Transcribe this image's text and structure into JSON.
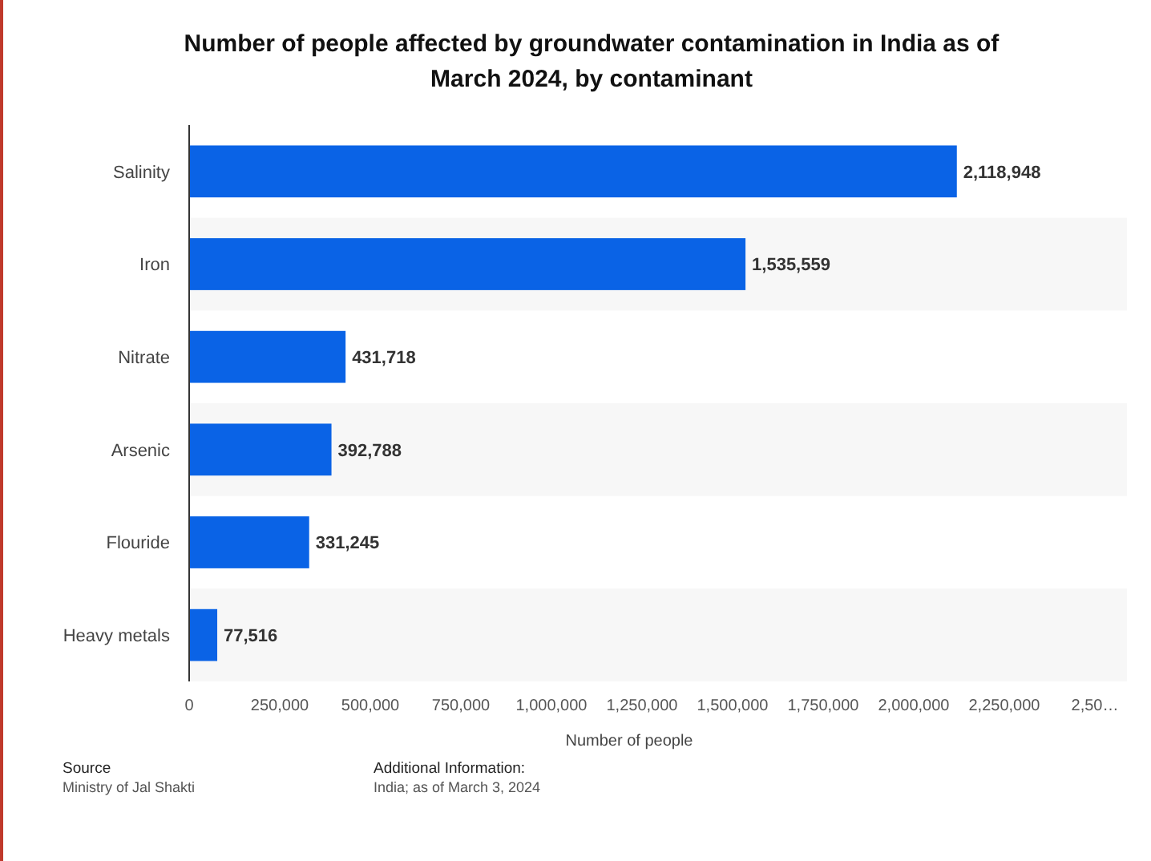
{
  "chart_data": {
    "type": "bar",
    "orientation": "horizontal",
    "title": "Number of people affected by groundwater contamination in India as of March 2024, by contaminant",
    "xlabel": "Number of people",
    "categories": [
      "Salinity",
      "Iron",
      "Nitrate",
      "Arsenic",
      "Flouride",
      "Heavy metals"
    ],
    "values": [
      2118948,
      1535559,
      431718,
      392788,
      331245,
      77516
    ],
    "value_labels": [
      "2,118,948",
      "1,535,559",
      "431,718",
      "392,788",
      "331,245",
      "77,516"
    ],
    "color": "#0a63e6",
    "grid": false,
    "xlim": [
      0,
      2500000
    ],
    "xticks": [
      {
        "value": 0,
        "label": "0"
      },
      {
        "value": 250000,
        "label": "250,000"
      },
      {
        "value": 500000,
        "label": "500,000"
      },
      {
        "value": 750000,
        "label": "750,000"
      },
      {
        "value": 1000000,
        "label": "1,000,000"
      },
      {
        "value": 1250000,
        "label": "1,250,000"
      },
      {
        "value": 1500000,
        "label": "1,500,000"
      },
      {
        "value": 1750000,
        "label": "1,750,000"
      },
      {
        "value": 2000000,
        "label": "2,000,000"
      },
      {
        "value": 2250000,
        "label": "2,250,000"
      },
      {
        "value": 2500000,
        "label": "2,50…"
      }
    ],
    "annotations": [
      "Source",
      "Ministry of Jal Shakti",
      "Additional Information:",
      "India; as of March 3, 2024"
    ]
  }
}
